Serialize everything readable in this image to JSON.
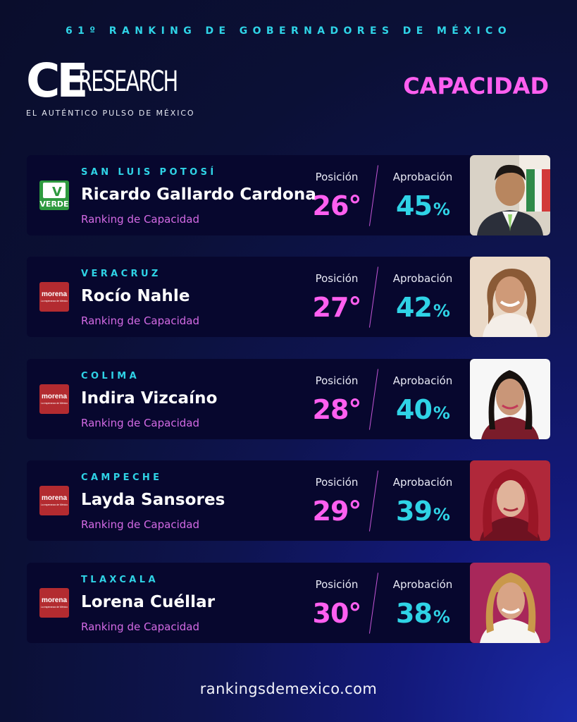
{
  "header": {
    "title": "61º RANKING DE GOBERNADORES DE MÉXICO",
    "logo_ce": "CE",
    "logo_research": "RESEARCH",
    "tagline": "EL AUTÉNTICO PULSO DE MÉXICO",
    "category": "CAPACIDAD"
  },
  "colors": {
    "accent_cyan": "#2fd3e6",
    "accent_magenta": "#ff5ff0",
    "card_bg": "#07072e"
  },
  "governors": [
    {
      "state": "SAN LUIS POTOSÍ",
      "name": "Ricardo Gallardo Cardona",
      "ranking_label": "Ranking de Capacidad",
      "position_label": "Posición",
      "position": "26°",
      "approval_label": "Aprobación",
      "approval": "45",
      "approval_unit": "%",
      "party": "VERDE"
    },
    {
      "state": "VERACRUZ",
      "name": "Rocío Nahle",
      "ranking_label": "Ranking de Capacidad",
      "position_label": "Posición",
      "position": "27°",
      "approval_label": "Aprobación",
      "approval": "42",
      "approval_unit": "%",
      "party": "morena",
      "party_sub": "La esperanza de México"
    },
    {
      "state": "COLIMA",
      "name": "Indira Vizcaíno",
      "ranking_label": "Ranking de Capacidad",
      "position_label": "Posición",
      "position": "28°",
      "approval_label": "Aprobación",
      "approval": "40",
      "approval_unit": "%",
      "party": "morena",
      "party_sub": "La esperanza de México"
    },
    {
      "state": "CAMPECHE",
      "name": "Layda Sansores",
      "ranking_label": "Ranking de Capacidad",
      "position_label": "Posición",
      "position": "29°",
      "approval_label": "Aprobación",
      "approval": "39",
      "approval_unit": "%",
      "party": "morena",
      "party_sub": "La esperanza de México"
    },
    {
      "state": "TLAXCALA",
      "name": "Lorena Cuéllar",
      "ranking_label": "Ranking de Capacidad",
      "position_label": "Posición",
      "position": "30°",
      "approval_label": "Aprobación",
      "approval": "38",
      "approval_unit": "%",
      "party": "morena",
      "party_sub": "La esperanza de México"
    }
  ],
  "footer": {
    "url": "rankingsdemexico.com"
  }
}
